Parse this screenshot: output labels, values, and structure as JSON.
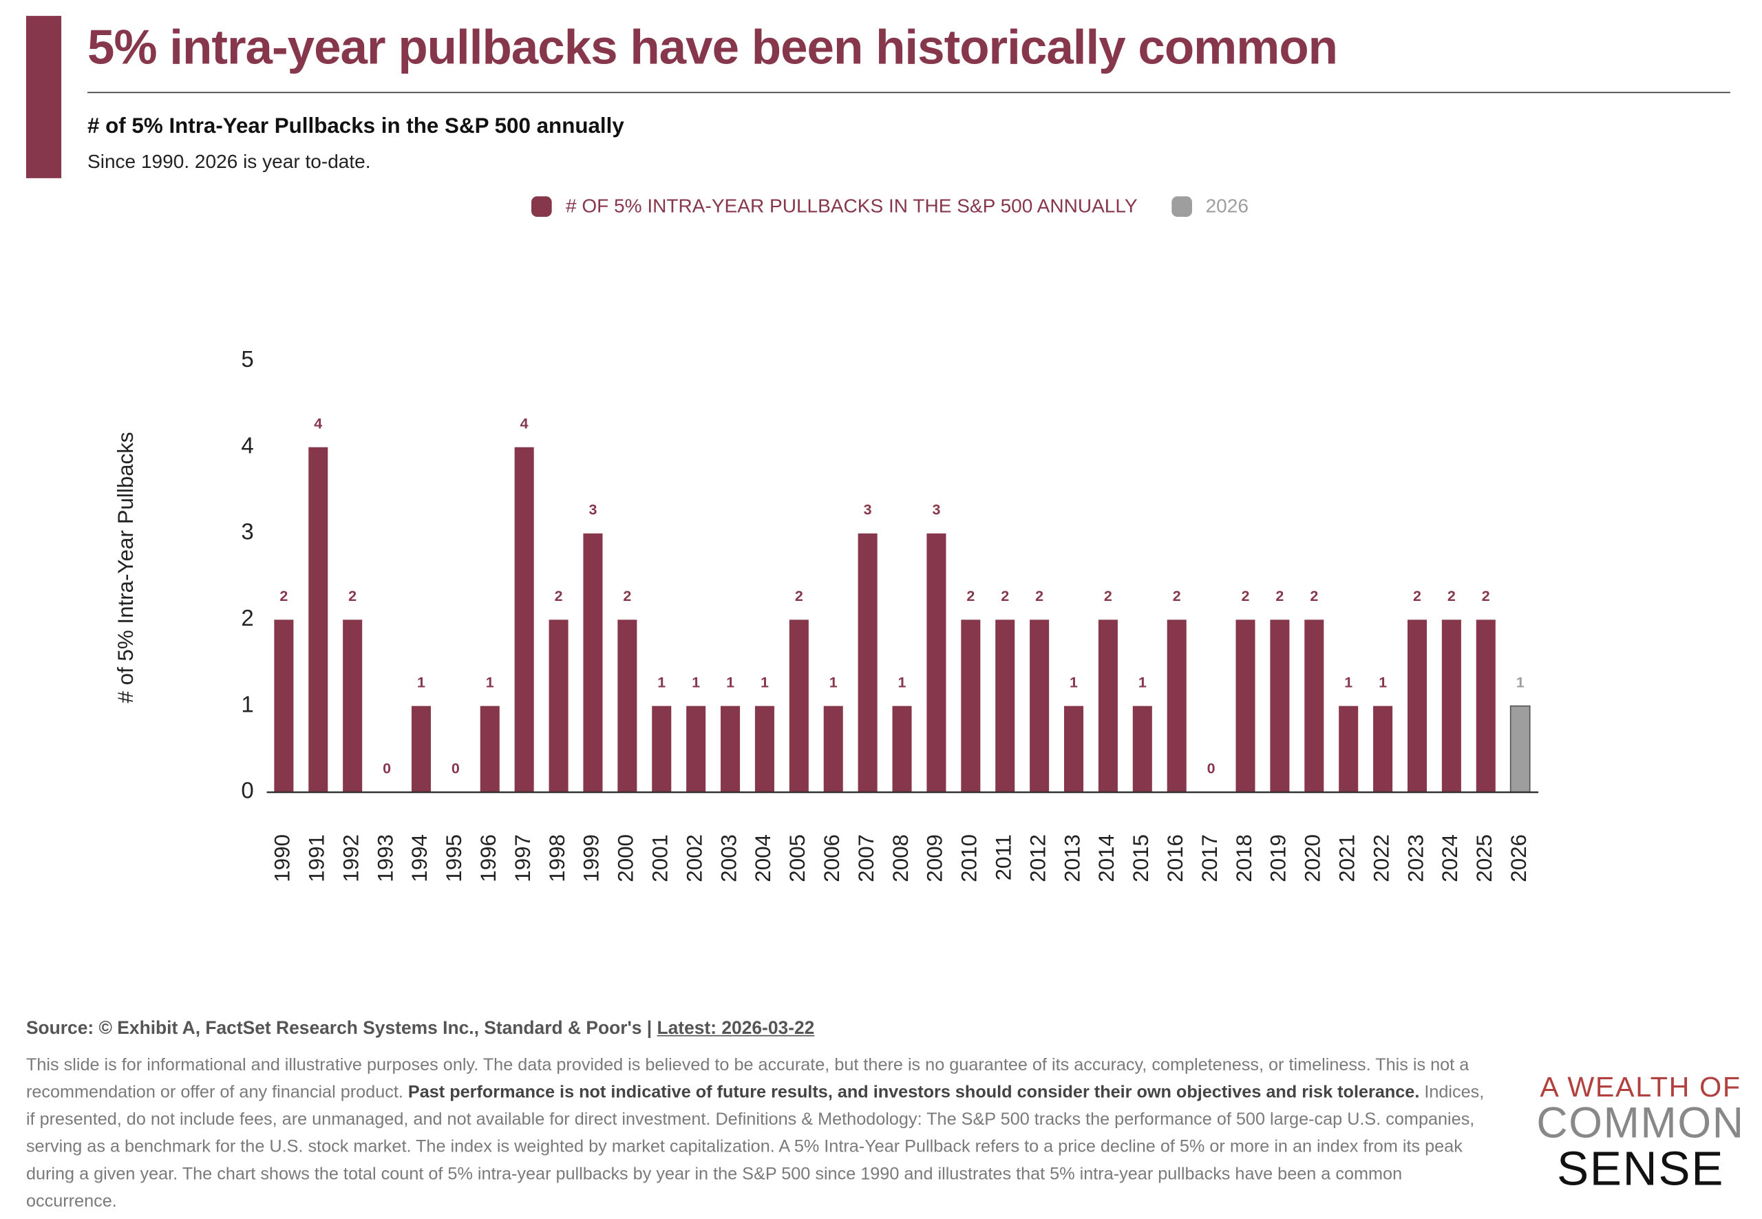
{
  "header": {
    "title": "5% intra-year pullbacks have been historically common"
  },
  "chart_data": {
    "type": "bar",
    "subtitle": "# of 5% Intra-Year Pullbacks in the S&P 500 annually",
    "note": "Since 1990. 2026 is year to-date.",
    "y_label": "# of 5% Intra-Year Pullbacks",
    "categories": [
      "1990",
      "1991",
      "1992",
      "1993",
      "1994",
      "1995",
      "1996",
      "1997",
      "1998",
      "1999",
      "2000",
      "2001",
      "2002",
      "2003",
      "2004",
      "2005",
      "2006",
      "2007",
      "2008",
      "2009",
      "2010",
      "2011",
      "2012",
      "2013",
      "2014",
      "2015",
      "2016",
      "2017",
      "2018",
      "2019",
      "2020",
      "2021",
      "2022",
      "2023",
      "2024",
      "2025",
      "2026"
    ],
    "series": [
      {
        "name": "# OF 5% INTRA-YEAR PULLBACKS IN THE S&P 500 ANNUALLY",
        "color": "#87374c",
        "values": [
          2,
          4,
          2,
          0,
          1,
          0,
          1,
          4,
          2,
          3,
          2,
          1,
          1,
          1,
          1,
          2,
          1,
          3,
          1,
          3,
          2,
          2,
          2,
          1,
          2,
          1,
          2,
          0,
          2,
          2,
          2,
          1,
          1,
          2,
          2,
          2,
          null
        ]
      },
      {
        "name": "2026",
        "color": "#9e9e9e",
        "values": [
          null,
          null,
          null,
          null,
          null,
          null,
          null,
          null,
          null,
          null,
          null,
          null,
          null,
          null,
          null,
          null,
          null,
          null,
          null,
          null,
          null,
          null,
          null,
          null,
          null,
          null,
          null,
          null,
          null,
          null,
          null,
          null,
          null,
          null,
          null,
          null,
          1
        ]
      }
    ],
    "ylim": [
      0,
      5
    ],
    "yticks": [
      0,
      1,
      2,
      3,
      4,
      5
    ],
    "grid": false
  },
  "footer": {
    "source": "Source: © Exhibit A, FactSet Research Systems Inc., Standard & Poor's |",
    "latest": "Latest: 2026-03-22",
    "disclaimer": [
      "This slide is for informational and illustrative purposes only. The data provided is believed to be accurate, but there is no guarantee of its accuracy, completeness, or timeliness. This is not a recommendation or offer of any financial product. ",
      "Past performance is not indicative of future results, and investors should consider their own objectives and risk tolerance.",
      " Indices, if presented, do not include fees, are unmanaged, and not available for direct investment. Definitions & Methodology: The S&P 500 tracks the performance of 500 large-cap U.S. companies, serving as a benchmark for the U.S. stock market. The index is weighted by market capitalization. A 5% Intra-Year Pullback refers to a price decline of 5% or more in an index from its peak during a given year. The chart shows the total count of 5% intra-year pullbacks by year in the S&P 500 since 1990 and illustrates that 5% intra-year pullbacks have been a common occurrence."
    ]
  },
  "logo": {
    "line1": "A WEALTH OF",
    "line2": "COMMON",
    "line3": "SENSE"
  }
}
